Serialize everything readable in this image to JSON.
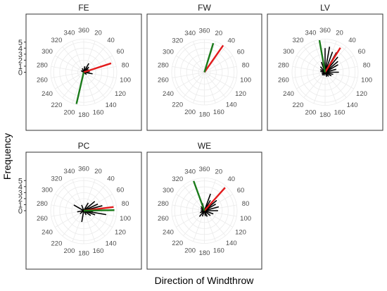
{
  "chart_data": {
    "type": "polar_segments",
    "y_axis_label": "Frequency",
    "x_axis_label": "Direction of Windthrow",
    "r_ticks": [
      0,
      1,
      2,
      3,
      4,
      5
    ],
    "r_max": 5.5,
    "direction_labels": [
      "360",
      "20",
      "40",
      "60",
      "80",
      "100",
      "120",
      "140",
      "160",
      "180",
      "200",
      "220",
      "240",
      "260",
      "280",
      "300",
      "320",
      "340"
    ],
    "colors": {
      "individual": "#000000",
      "mean": "#e31a1c",
      "resultant": "#1a7a1a"
    },
    "panels": [
      {
        "title": "FE",
        "mean": {
          "direction": 72,
          "length": 4.8
        },
        "resultant": {
          "direction": 193,
          "length": 5.4
        },
        "individual": [
          {
            "direction": 10,
            "length": 1.0
          },
          {
            "direction": 30,
            "length": 1.7
          },
          {
            "direction": 45,
            "length": 1.2
          },
          {
            "direction": 60,
            "length": 0.9
          },
          {
            "direction": 85,
            "length": 1.0
          },
          {
            "direction": 100,
            "length": 1.5
          },
          {
            "direction": 130,
            "length": 0.6
          },
          {
            "direction": 300,
            "length": 0.5
          },
          {
            "direction": 340,
            "length": 0.7
          }
        ]
      },
      {
        "title": "FW",
        "mean": {
          "direction": 35,
          "length": 5.5
        },
        "resultant": {
          "direction": 17,
          "length": 5.1
        },
        "individual": []
      },
      {
        "title": "LV",
        "mean": {
          "direction": 32,
          "length": 4.8
        },
        "resultant": {
          "direction": 350,
          "length": 5.4
        },
        "individual": [
          {
            "direction": 0,
            "length": 4.0
          },
          {
            "direction": 10,
            "length": 4.3
          },
          {
            "direction": 20,
            "length": 3.6
          },
          {
            "direction": 30,
            "length": 3.8
          },
          {
            "direction": 40,
            "length": 3.3
          },
          {
            "direction": 50,
            "length": 2.8
          },
          {
            "direction": 60,
            "length": 2.5
          },
          {
            "direction": 75,
            "length": 1.9
          },
          {
            "direction": 90,
            "length": 2.3
          },
          {
            "direction": 105,
            "length": 1.4
          },
          {
            "direction": 120,
            "length": 1.2
          },
          {
            "direction": 140,
            "length": 0.9
          },
          {
            "direction": 160,
            "length": 0.8
          },
          {
            "direction": 200,
            "length": 0.6
          },
          {
            "direction": 225,
            "length": 0.7
          },
          {
            "direction": 250,
            "length": 0.6
          },
          {
            "direction": 280,
            "length": 0.8
          },
          {
            "direction": 300,
            "length": 0.9
          },
          {
            "direction": 320,
            "length": 1.2
          },
          {
            "direction": 340,
            "length": 1.8
          }
        ]
      },
      {
        "title": "PC",
        "mean": {
          "direction": 83,
          "length": 5.0
        },
        "resultant": {
          "direction": 89,
          "length": 5.1
        },
        "individual": [
          {
            "direction": 30,
            "length": 1.5
          },
          {
            "direction": 50,
            "length": 2.4
          },
          {
            "direction": 65,
            "length": 2.6
          },
          {
            "direction": 75,
            "length": 3.2
          },
          {
            "direction": 95,
            "length": 1.5
          },
          {
            "direction": 100,
            "length": 3.8
          },
          {
            "direction": 110,
            "length": 2.0
          },
          {
            "direction": 125,
            "length": 1.4
          },
          {
            "direction": 150,
            "length": 0.8
          },
          {
            "direction": 190,
            "length": 1.9
          },
          {
            "direction": 230,
            "length": 0.8
          },
          {
            "direction": 260,
            "length": 1.1
          },
          {
            "direction": 300,
            "length": 1.9
          },
          {
            "direction": 340,
            "length": 1.0
          }
        ]
      },
      {
        "title": "WE",
        "mean": {
          "direction": 42,
          "length": 5.2
        },
        "resultant": {
          "direction": 340,
          "length": 5.3
        },
        "individual": [
          {
            "direction": 20,
            "length": 3.0
          },
          {
            "direction": 30,
            "length": 2.0
          },
          {
            "direction": 50,
            "length": 2.7
          },
          {
            "direction": 60,
            "length": 2.2
          },
          {
            "direction": 75,
            "length": 2.5
          },
          {
            "direction": 90,
            "length": 2.3
          },
          {
            "direction": 110,
            "length": 1.6
          },
          {
            "direction": 130,
            "length": 1.3
          },
          {
            "direction": 155,
            "length": 1.1
          },
          {
            "direction": 170,
            "length": 0.9
          },
          {
            "direction": 200,
            "length": 1.0
          },
          {
            "direction": 220,
            "length": 1.3
          },
          {
            "direction": 245,
            "length": 0.8
          },
          {
            "direction": 270,
            "length": 0.6
          },
          {
            "direction": 300,
            "length": 0.7
          },
          {
            "direction": 320,
            "length": 0.9
          },
          {
            "direction": 345,
            "length": 1.3
          }
        ]
      }
    ]
  }
}
